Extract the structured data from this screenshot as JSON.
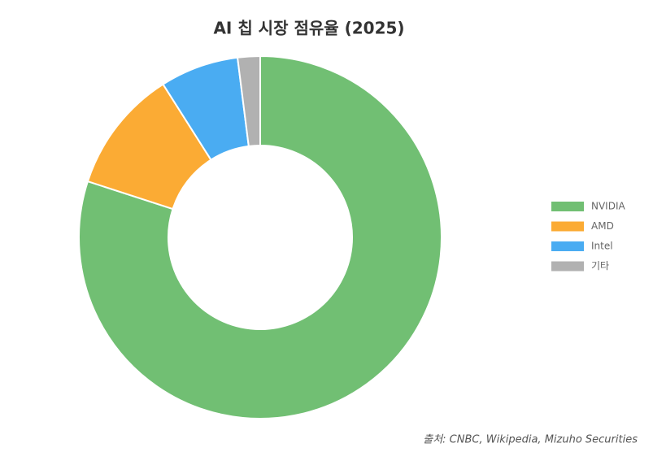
{
  "chart_data": {
    "type": "pie",
    "title": "AI 칩 시장 점유율 (2025)",
    "categories": [
      "NVIDIA",
      "AMD",
      "Intel",
      "기타"
    ],
    "values": [
      80,
      11,
      7,
      2
    ],
    "colors": [
      "#71bf73",
      "#fbab34",
      "#4aacf2",
      "#b1b1b1"
    ],
    "donut": true,
    "legend": "right",
    "source": "출처: CNBC, Wikipedia, Mizuho Securities"
  }
}
